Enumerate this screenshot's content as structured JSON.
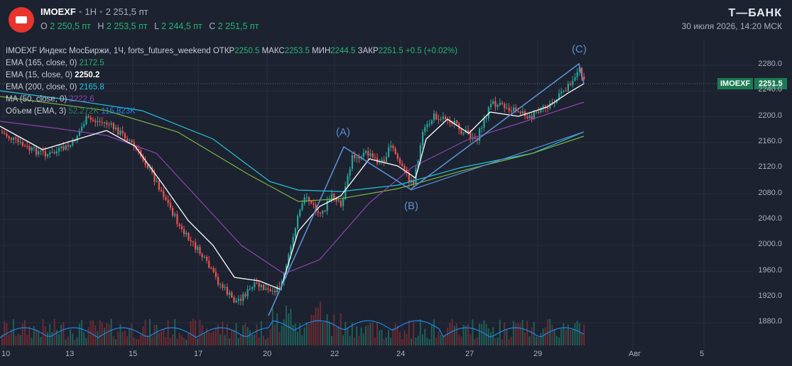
{
  "header": {
    "symbol": "IMOEXF",
    "interval": "1H",
    "price": "2 251,5 пт",
    "ohlc": [
      {
        "label": "O",
        "value": "2 250,5 пт"
      },
      {
        "label": "H",
        "value": "2 253,5 пт"
      },
      {
        "label": "L",
        "value": "2 244,5 пт"
      },
      {
        "label": "C",
        "value": "2 251,5 пт"
      }
    ],
    "brand": "Т—БАНК",
    "datetime": "30 июля 2026, 14:20 МСК"
  },
  "legend": {
    "line1": {
      "title": "IMOEXF Индекс МосБиржи, 1Ч, forts_futures_weekend",
      "open_label": "ОТКР",
      "open": "2250.5",
      "high_label": "МАКС",
      "high": "2253.5",
      "low_label": "МИН",
      "low": "2244.5",
      "close_label": "ЗАКР",
      "close": "2251.5",
      "change": "+0.5 (+0.02%)"
    },
    "ema165": {
      "label": "EMA (165, close, 0)",
      "value": "2172.5"
    },
    "ema15": {
      "label": "EMA (15, close, 0)",
      "value": "2250.2"
    },
    "ema200": {
      "label": "EMA (200, close, 0)",
      "value": "2165.8"
    },
    "ma50": {
      "label": "MA (50, close, 0)",
      "value": "2222.6"
    },
    "volume": {
      "label": "Объем (EMA, 3)",
      "value1": "52.272K",
      "value2": "115.823K"
    }
  },
  "price_tag": {
    "symbol": "IMOEXF",
    "value": "2251.5"
  },
  "y_axis": [
    "2280.0",
    "2240.0",
    "2200.0",
    "2160.0",
    "2120.0",
    "2080.0",
    "2040.0",
    "2000.0",
    "1960.0",
    "1920.0",
    "1880.0"
  ],
  "x_axis": [
    "10",
    "13",
    "15",
    "17",
    "20",
    "22",
    "24",
    "27",
    "29",
    "Авг",
    "5"
  ],
  "waves": {
    "a": "(A)",
    "b": "(B)",
    "c": "(C)"
  },
  "colors": {
    "bg": "#1c2230",
    "up": "#26a69a",
    "down": "#ef5350",
    "ema15": "#ffffff",
    "ema165": "#26c6da",
    "ema200": "#7cb342",
    "ma50": "#8e44ad",
    "volume": "#1e88e5",
    "wave": "#5b8fd1"
  }
}
